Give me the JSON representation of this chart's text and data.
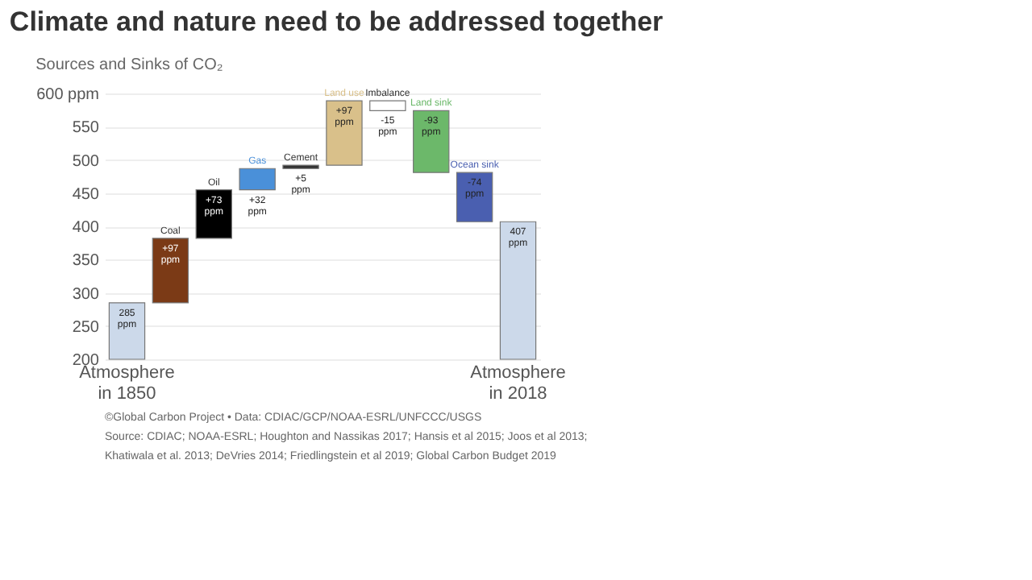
{
  "chart_data": {
    "type": "bar",
    "title": "Climate and nature need to be addressed together",
    "subtitle": "Sources and Sinks of CO₂",
    "categories": [
      "Atmosphere in 1850",
      "Coal",
      "Oil",
      "Gas",
      "Cement",
      "Land use",
      "Imbalance",
      "Land sink",
      "Ocean sink",
      "Atmosphere in 2018"
    ],
    "values": [
      285,
      97,
      73,
      32,
      5,
      97,
      -15,
      -93,
      -74,
      407
    ],
    "base": [
      null,
      285,
      382,
      455,
      487,
      492,
      589,
      574,
      481,
      null
    ],
    "colors": [
      "#ccd9ea",
      "#7b3a16",
      "#000000",
      "#4a90d9",
      "#333333",
      "#d9c08a",
      "#ffffff",
      "#6cb86a",
      "#4a5fb0",
      "#ccd9ea"
    ],
    "value_labels": [
      "285 ppm",
      "+97 ppm",
      "+73 ppm",
      "+32 ppm",
      "+5 ppm",
      "+97 ppm",
      "-15 ppm",
      "-93 ppm",
      "-74 ppm",
      "407 ppm"
    ],
    "ylim": [
      200,
      600
    ],
    "yticks": [
      200,
      250,
      300,
      350,
      400,
      450,
      500,
      550,
      {
        "value": 600,
        "label": "600 ppm"
      }
    ],
    "grid": "y",
    "annotations": [
      "©Global Carbon Project • Data: CDIAC/GCP/NOAA-ESRL/UNFCCC/USGS",
      "Source: CDIAC; NOAA-ESRL; Houghton and Nassikas 2017; Hansis et al 2015; Joos et al 2013;",
      "Khatiwala et al. 2013; DeVries 2014; Friedlingstein et al 2019; Global Carbon Budget 2019"
    ]
  }
}
